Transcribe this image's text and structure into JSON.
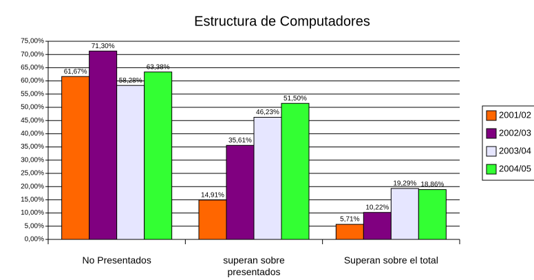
{
  "chart_data": {
    "type": "bar",
    "title": "Estructura de Computadores",
    "categories": [
      "No Presentados",
      "superan sobre presentados",
      "Superan sobre el total"
    ],
    "series": [
      {
        "name": "2001/02",
        "color": "#ff6600",
        "values": [
          61.67,
          14.91,
          5.71
        ],
        "value_labels": [
          "61,67%",
          "14,91%",
          "5,71%"
        ]
      },
      {
        "name": "2002/03",
        "color": "#800080",
        "values": [
          71.3,
          35.61,
          10.22
        ],
        "value_labels": [
          "71,30%",
          "35,61%",
          "10,22%"
        ]
      },
      {
        "name": "2003/04",
        "color": "#e6e6ff",
        "values": [
          58.28,
          46.23,
          19.29
        ],
        "value_labels": [
          "58,28%",
          "46,23%",
          "19,29%"
        ]
      },
      {
        "name": "2004/05",
        "color": "#33ff33",
        "values": [
          63.38,
          51.5,
          18.86
        ],
        "value_labels": [
          "63,38%",
          "51,50%",
          "18,86%"
        ]
      }
    ],
    "ylim": [
      0,
      75
    ],
    "yticks": [
      {
        "value": 0,
        "label": "0,00%"
      },
      {
        "value": 5,
        "label": "5,00%"
      },
      {
        "value": 10,
        "label": "10,00%"
      },
      {
        "value": 15,
        "label": "15,00%"
      },
      {
        "value": 20,
        "label": "20,00%"
      },
      {
        "value": 25,
        "label": "25,00%"
      },
      {
        "value": 30,
        "label": "30,00%"
      },
      {
        "value": 35,
        "label": "35,00%"
      },
      {
        "value": 40,
        "label": "40,00%"
      },
      {
        "value": 45,
        "label": "45,00%"
      },
      {
        "value": 50,
        "label": "50,00%"
      },
      {
        "value": 55,
        "label": "55,00%"
      },
      {
        "value": 60,
        "label": "60,00%"
      },
      {
        "value": 65,
        "label": "65,00%"
      },
      {
        "value": 70,
        "label": "70,00%"
      },
      {
        "value": 75,
        "label": "75,00%"
      }
    ],
    "grid": true,
    "legend": "right"
  }
}
